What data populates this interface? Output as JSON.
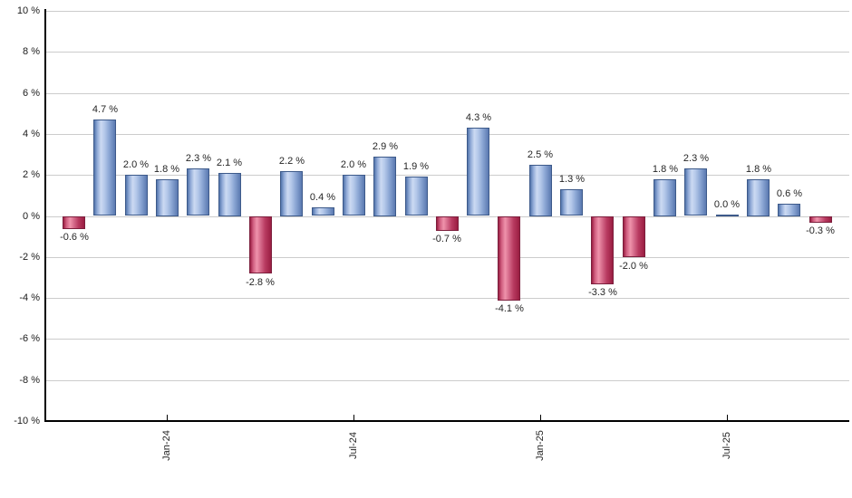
{
  "chart": {
    "background": "#ffffff"
  },
  "chart_data": {
    "type": "bar",
    "title": "",
    "xlabel": "",
    "ylabel": "",
    "ylim": [
      -10,
      10
    ],
    "ytick_step": 2,
    "grid": true,
    "legend": "none",
    "y_tick_labels": [
      "10 %",
      "8 %",
      "6 %",
      "4 %",
      "2 %",
      "0 %",
      "-2 %",
      "-4 %",
      "-6 %",
      "-8 %",
      "-10 %"
    ],
    "values": [
      -0.6,
      4.7,
      2.0,
      1.8,
      2.3,
      2.1,
      -2.8,
      2.2,
      0.4,
      2.0,
      2.9,
      1.9,
      -0.7,
      4.3,
      -4.1,
      2.5,
      1.3,
      -3.3,
      -2.0,
      1.8,
      2.3,
      0.0,
      1.8,
      0.6,
      -0.3
    ],
    "bar_value_labels": [
      "-0.6 %",
      "4.7 %",
      "2.0 %",
      "1.8 %",
      "2.3 %",
      "2.1 %",
      "-2.8 %",
      "2.2 %",
      "0.4 %",
      "2.0 %",
      "2.9 %",
      "1.9 %",
      "-0.7 %",
      "4.3 %",
      "-4.1 %",
      "2.5 %",
      "1.3 %",
      "-3.3 %",
      "-2.0 %",
      "1.8 %",
      "2.3 %",
      "0.0 %",
      "1.8 %",
      "0.6 %",
      "-0.3 %"
    ],
    "x_tick_labels": [
      {
        "bar_index": 3,
        "label": "Jan-24"
      },
      {
        "bar_index": 9,
        "label": "Jul-24"
      },
      {
        "bar_index": 15,
        "label": "Jan-25"
      },
      {
        "bar_index": 21,
        "label": "Jul-25"
      }
    ],
    "colors": {
      "positive_bar_gradient": [
        "#5274ab",
        "#8fa9d6",
        "#ccdaf2",
        "#b3c7e9",
        "#8aa5d3",
        "#5a79b0"
      ],
      "positive_bar_border": "#3d5a8a",
      "negative_bar_gradient": [
        "#9a1e42",
        "#cf5c7e",
        "#ef93ab",
        "#d56a8a",
        "#b83a60",
        "#9a1e42"
      ],
      "negative_bar_border": "#7c1f3d",
      "gridline": "#cccccc",
      "axis": "#000000",
      "text": "#262626"
    }
  }
}
